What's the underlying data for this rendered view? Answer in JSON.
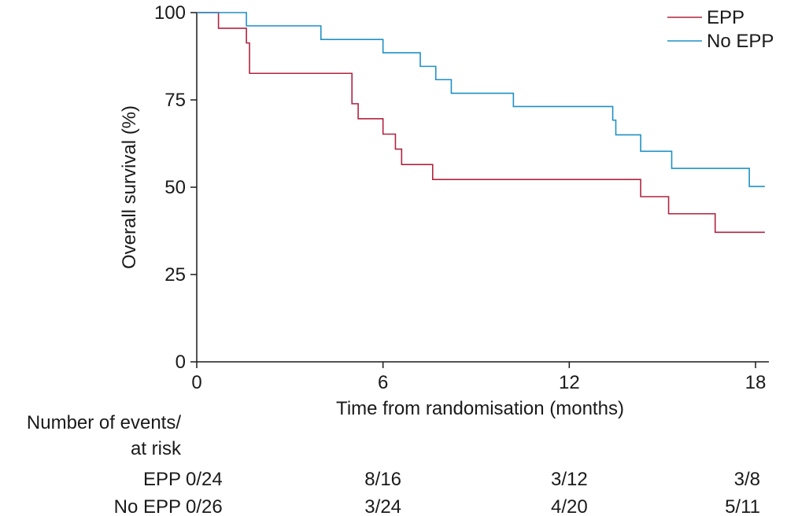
{
  "chart_data": {
    "type": "line",
    "xlabel": "Time from randomisation (months)",
    "ylabel": "Overall survival (%)",
    "xlim": [
      0,
      18.3
    ],
    "ylim": [
      0,
      100
    ],
    "x_ticks": [
      0,
      6,
      12,
      18
    ],
    "y_ticks": [
      0,
      25,
      50,
      75,
      100
    ],
    "grid": false,
    "legend_position": "top-right",
    "series": [
      {
        "name": "EPP",
        "color": "#b0233f",
        "x": [
          0,
          0.7,
          1.6,
          1.7,
          5.0,
          5.2,
          6.0,
          6.4,
          6.6,
          7.6,
          14.3,
          15.2,
          16.7,
          18.3
        ],
        "y": [
          100,
          95.5,
          91.3,
          82.6,
          73.9,
          69.6,
          65.2,
          60.9,
          56.5,
          52.2,
          47.3,
          42.4,
          37.1,
          37.1
        ]
      },
      {
        "name": "No EPP",
        "color": "#1f90c4",
        "x": [
          0,
          1.6,
          4.0,
          6.0,
          7.2,
          7.7,
          8.2,
          10.2,
          13.4,
          13.5,
          14.3,
          15.3,
          17.8,
          18.3
        ],
        "y": [
          100,
          96.2,
          92.3,
          88.5,
          84.6,
          80.8,
          76.9,
          73.1,
          69.2,
          65.0,
          60.3,
          55.4,
          50.2,
          50.2
        ]
      }
    ],
    "risk_table": {
      "header_line1": "Number of events/",
      "header_line2": "at risk",
      "times": [
        0,
        6,
        12,
        18
      ],
      "rows": [
        {
          "label": "EPP",
          "values": [
            "0/24",
            "8/16",
            "3/12",
            "3/8"
          ]
        },
        {
          "label": "No EPP",
          "values": [
            "0/26",
            "3/24",
            "4/20",
            "5/11"
          ]
        }
      ]
    }
  }
}
